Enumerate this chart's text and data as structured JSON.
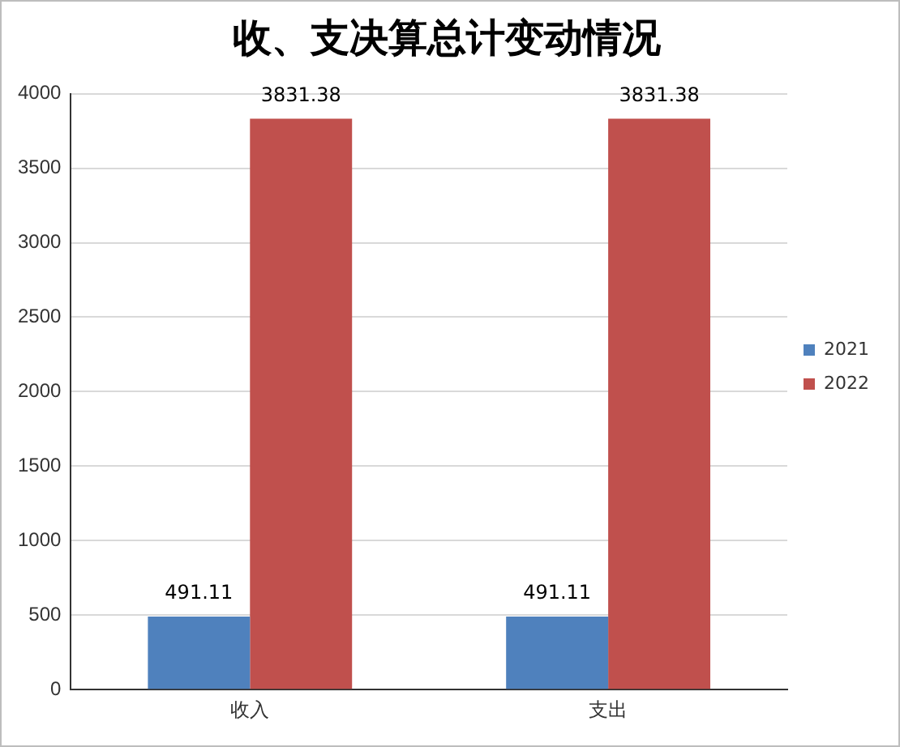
{
  "chart_data": {
    "type": "bar",
    "title": "收、支决算总计变动情况",
    "categories": [
      "收入",
      "支出"
    ],
    "series": [
      {
        "name": "2021",
        "color": "#4f81bd",
        "values": [
          491.11,
          491.11
        ]
      },
      {
        "name": "2022",
        "color": "#c0504d",
        "values": [
          3831.38,
          3831.38
        ]
      }
    ],
    "ylim": [
      0,
      4000
    ],
    "yticks": [
      0,
      500,
      1000,
      1500,
      2000,
      2500,
      3000,
      3500,
      4000
    ],
    "grid": "y",
    "legend": "right",
    "data_labels": true
  }
}
